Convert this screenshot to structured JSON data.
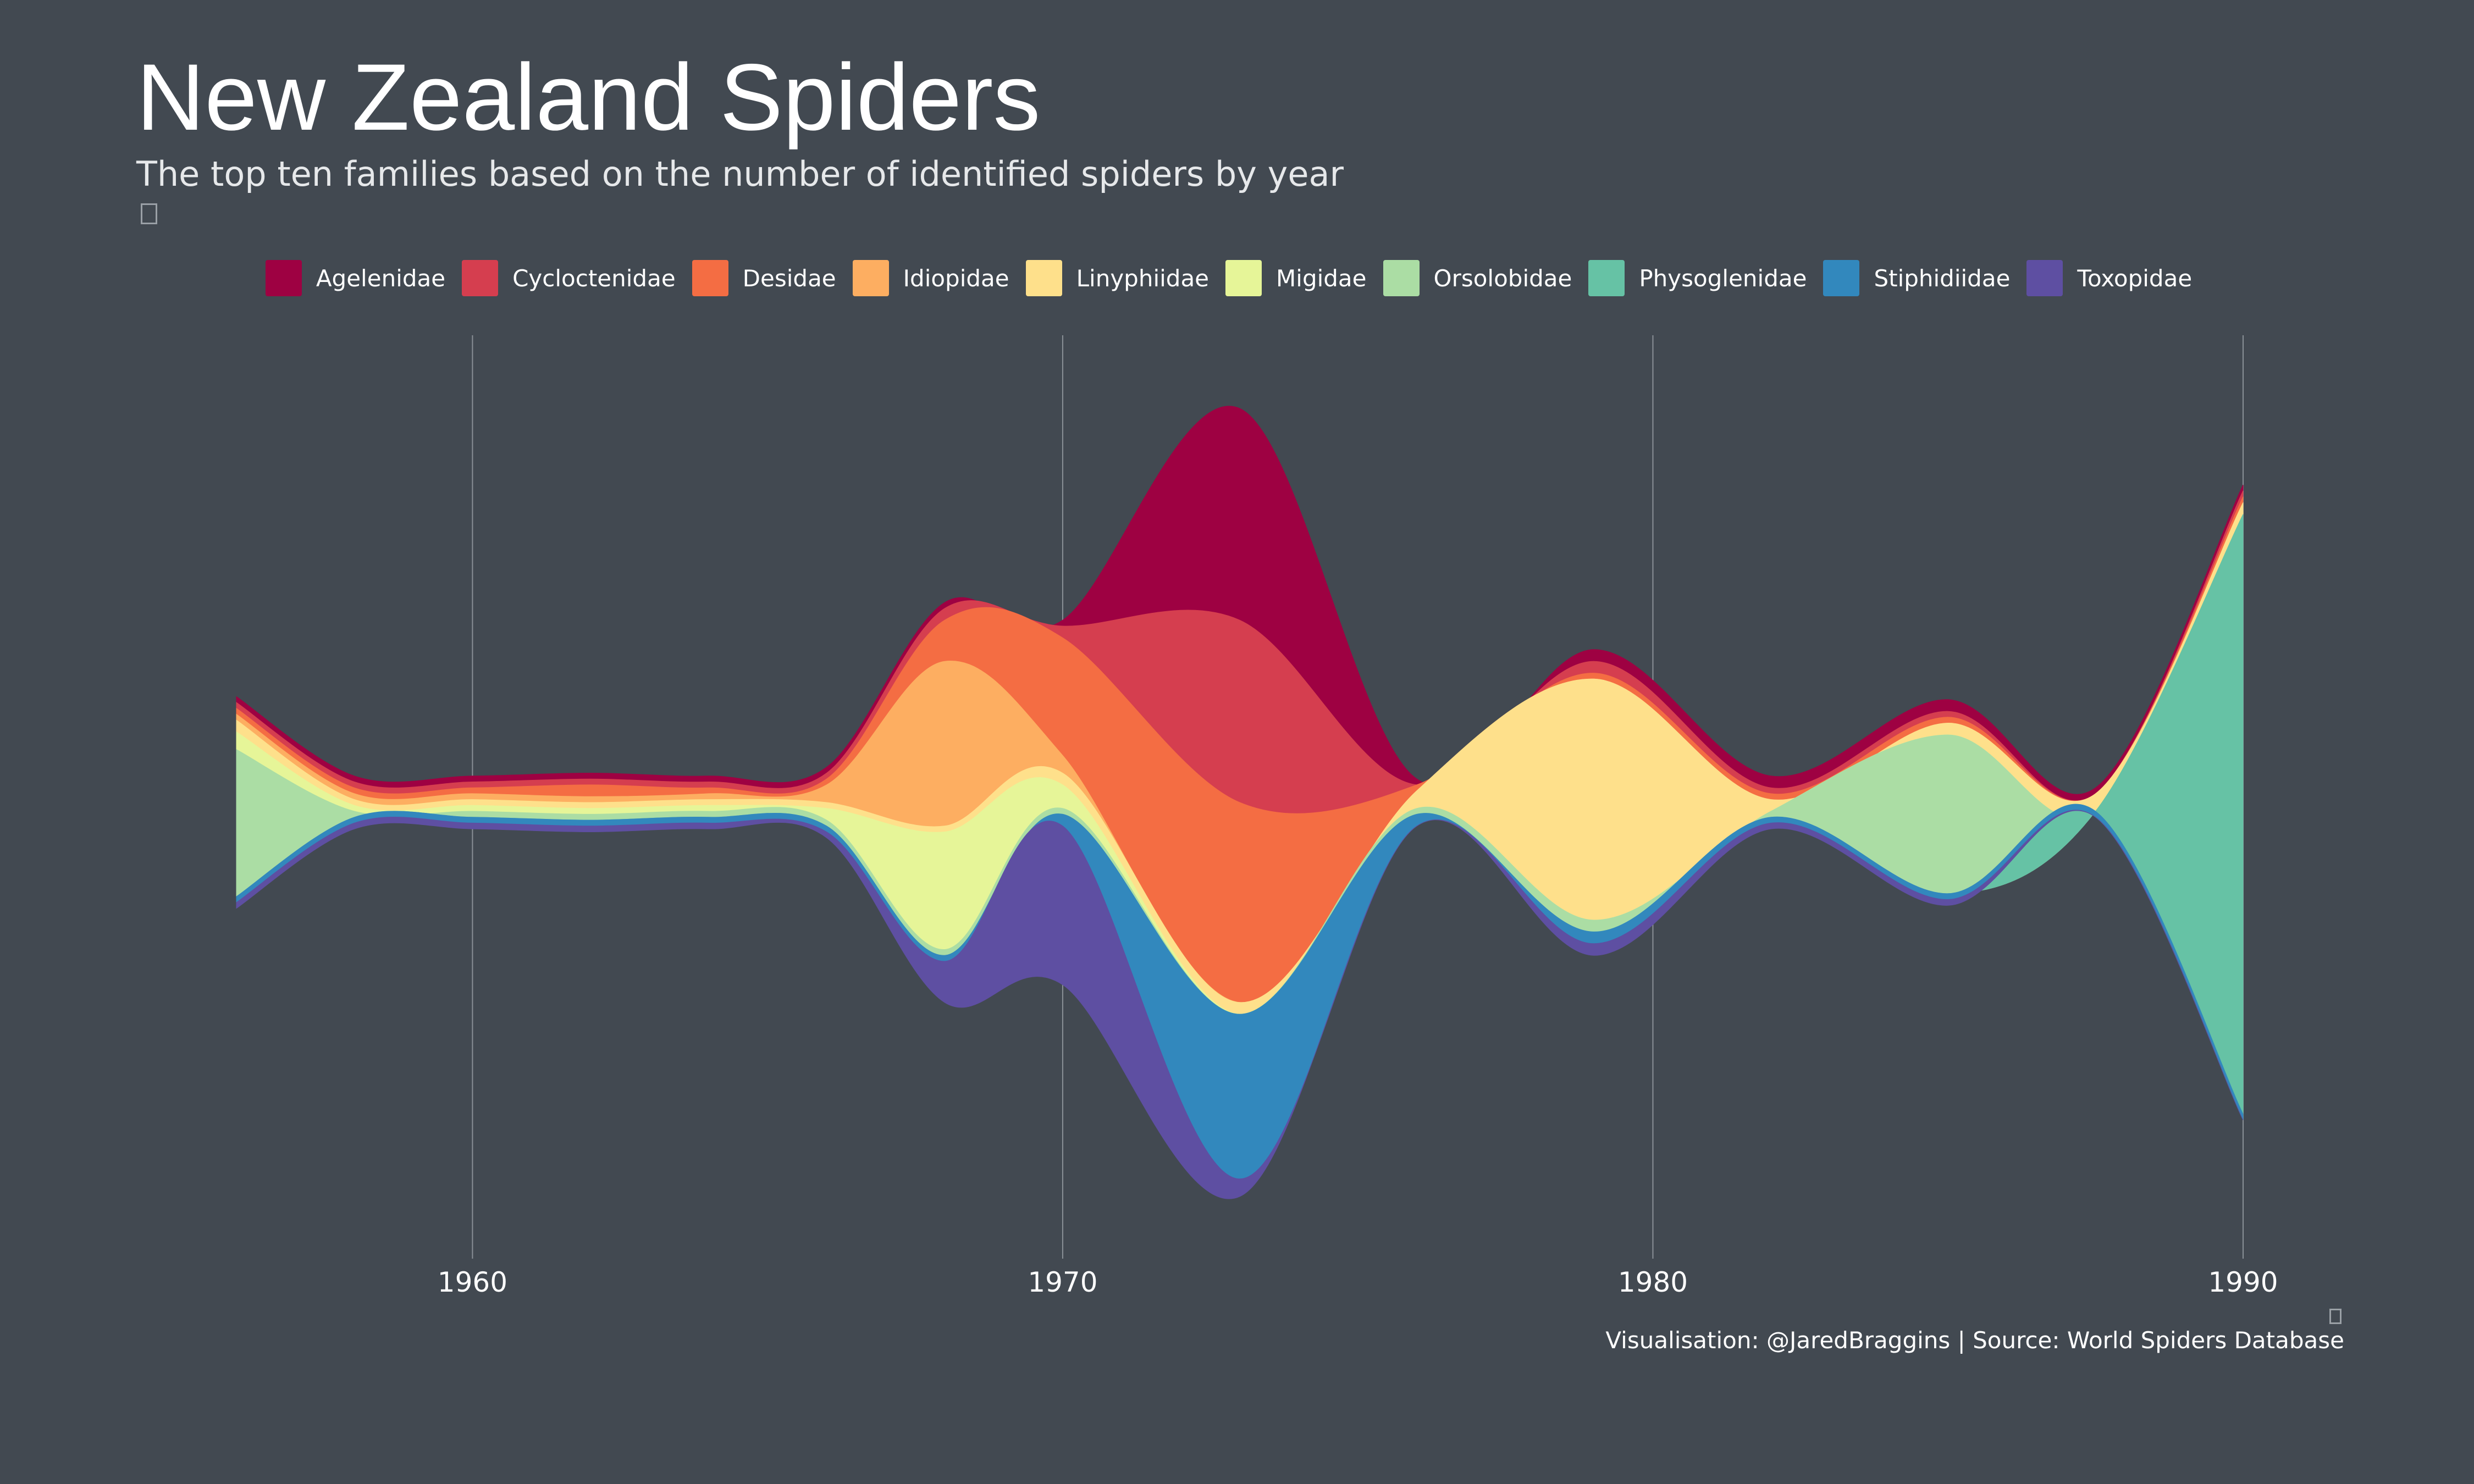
{
  "chart_data": {
    "type": "area",
    "style": "streamgraph",
    "title": "New Zealand Spiders",
    "subtitle": "The top ten families based on the number of identified spiders by year",
    "caption": "Visualisation: @JaredBraggins | Source: World Spiders Database",
    "x_ticks": [
      "1960",
      "1970",
      "1980",
      "1990"
    ],
    "xlim": [
      1956,
      1990
    ],
    "grid": "vertical lines at ticks",
    "legend_position": "top",
    "background": "#424951",
    "x": [
      1956,
      1958,
      1960,
      1962,
      1964,
      1966,
      1968,
      1970,
      1973,
      1976,
      1979,
      1982,
      1985,
      1987.5,
      1990
    ],
    "series": [
      {
        "name": "Agelenidae",
        "color": "#9e0142",
        "values": [
          1,
          1,
          1,
          1,
          1,
          1,
          1,
          1,
          36,
          1,
          2,
          2,
          2,
          1,
          1
        ]
      },
      {
        "name": "Cycloctenidae",
        "color": "#d53e4f",
        "values": [
          1,
          1,
          1,
          1,
          1,
          1,
          2,
          2,
          31,
          0,
          2,
          1,
          1,
          0,
          1
        ]
      },
      {
        "name": "Desidae",
        "color": "#f46d43",
        "values": [
          1,
          1,
          1,
          2,
          1,
          1,
          7,
          20,
          34,
          1,
          1,
          1,
          1,
          0,
          1
        ]
      },
      {
        "name": "Idiopidae",
        "color": "#fdae61",
        "values": [
          1,
          1,
          1,
          1,
          1,
          3,
          28,
          3,
          0,
          0,
          0,
          0,
          0,
          0,
          0
        ]
      },
      {
        "name": "Linyphiidae",
        "color": "#fee08b",
        "values": [
          2,
          1,
          1,
          1,
          1,
          1,
          1,
          2,
          2,
          3,
          41,
          2,
          2,
          3,
          2
        ]
      },
      {
        "name": "Migidae",
        "color": "#e6f598",
        "values": [
          3,
          1,
          1,
          1,
          1,
          2,
          20,
          4,
          0,
          0,
          0,
          0,
          0,
          0,
          0
        ]
      },
      {
        "name": "Orsolobidae",
        "color": "#abdda4",
        "values": [
          25,
          1,
          1,
          1,
          1,
          1,
          1,
          1,
          0,
          1,
          2,
          1,
          27,
          0,
          0
        ]
      },
      {
        "name": "Physoglenidae",
        "color": "#66c2a5",
        "values": [
          0,
          0,
          0,
          0,
          0,
          0,
          0,
          0,
          0,
          0,
          0,
          0,
          0,
          0,
          102
        ]
      },
      {
        "name": "Stiphidiidae",
        "color": "#3288bd",
        "values": [
          1,
          1,
          1,
          1,
          1,
          1,
          1,
          2,
          28,
          2,
          2,
          1,
          1,
          1,
          1
        ]
      },
      {
        "name": "Toxopidae",
        "color": "#5e4fa2",
        "values": [
          1,
          1,
          1,
          1,
          1,
          1,
          7,
          27,
          3,
          0,
          2,
          1,
          1,
          0,
          0
        ]
      }
    ]
  }
}
